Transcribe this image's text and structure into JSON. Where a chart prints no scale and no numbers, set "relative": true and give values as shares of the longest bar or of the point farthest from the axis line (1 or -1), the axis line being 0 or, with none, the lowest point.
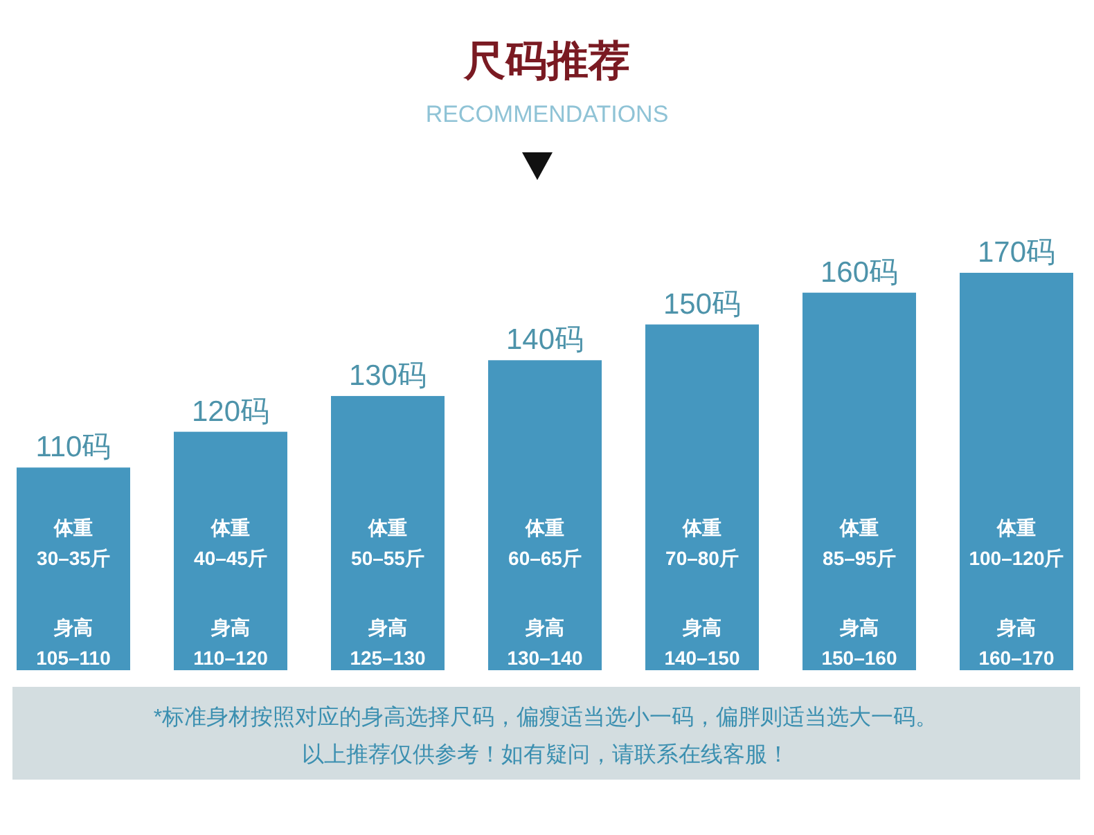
{
  "chart_data": {
    "type": "bar",
    "title": "尺码推荐",
    "subtitle": "RECOMMENDATIONS",
    "relative": true,
    "color": "#4597bf",
    "categories": [
      "110码",
      "120码",
      "130码",
      "140码",
      "150码",
      "160码",
      "170码"
    ],
    "values": [
      0.51,
      0.6,
      0.69,
      0.78,
      0.87,
      0.95,
      1
    ],
    "annotations": [
      "体重\n30–35斤",
      "身高\n105–110",
      "体重\n40–45斤",
      "身高\n110–120",
      "体重\n50–55斤",
      "身高\n125–130",
      "体重\n60–65斤",
      "身高\n130–140",
      "体重\n70–80斤",
      "身高\n140–150",
      "体重\n85–95斤",
      "身高\n150–160",
      "体重\n100–120斤",
      "身高\n160–170",
      "*标准身材按照对应的身高选择尺码，偏瘦适当选小一码，偏胖则适当选大一码。",
      "以上推荐仅供参考！如有疑问，请联系在线客服！"
    ]
  }
}
